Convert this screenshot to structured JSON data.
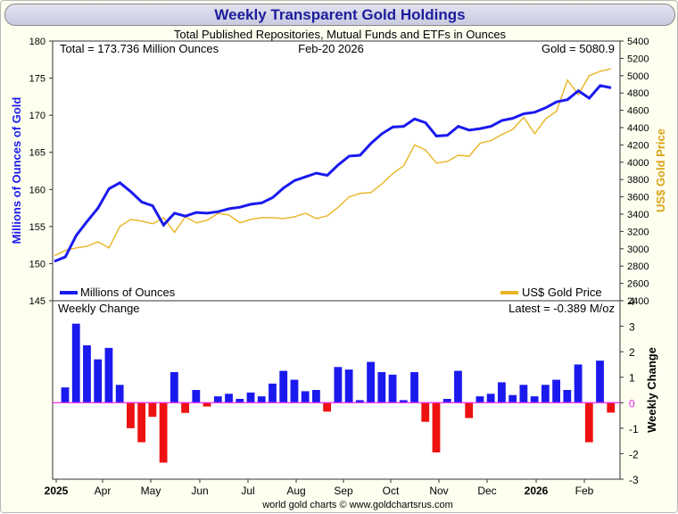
{
  "title": "Weekly Transparent Gold Holdings",
  "subtitle": "Total Published Repositories, Mutual Funds and ETFs in Ounces",
  "info": {
    "total": "Total = 173.736 Million Ounces",
    "date": "Feb-20  2026",
    "gold": "Gold = 5080.9"
  },
  "footer": "world gold charts © www.goldchartsrus.com",
  "colors": {
    "holdings": "#1a1aee",
    "gold": "#e8b422",
    "positive": "#1a1aee",
    "negative": "#ee1111",
    "zero": "#ee22ee",
    "title": "#1d1d9c"
  },
  "chart_data": [
    {
      "type": "line",
      "title": "Weekly Transparent Gold Holdings",
      "ylabel": "Millions of Ounces of Gold",
      "y2label": "US$ Gold Price",
      "ylim": [
        145,
        180
      ],
      "y2lim": [
        2400,
        5400
      ],
      "yticks": [
        145,
        150,
        155,
        160,
        165,
        170,
        175,
        180
      ],
      "y2ticks": [
        2400,
        2600,
        2800,
        3000,
        3200,
        3400,
        3600,
        3800,
        4000,
        4200,
        4400,
        4600,
        4800,
        5000,
        5200,
        5400
      ],
      "x_weeks_total": 60,
      "legend": [
        {
          "name": "Millions of Ounces",
          "position": "bottom-left"
        },
        {
          "name": "US$ Gold Price",
          "position": "bottom-right"
        }
      ],
      "series": [
        {
          "name": "Millions of Ounces",
          "axis": "left",
          "values": [
            150.3,
            150.9,
            153.8,
            155.7,
            157.5,
            160.1,
            160.9,
            159.7,
            158.3,
            157.8,
            155.2,
            156.8,
            156.4,
            156.9,
            156.8,
            157.0,
            157.4,
            157.6,
            158.0,
            158.2,
            158.9,
            160.2,
            161.2,
            161.7,
            162.2,
            161.9,
            163.3,
            164.5,
            164.6,
            166.2,
            167.5,
            168.4,
            168.5,
            169.5,
            169.0,
            167.2,
            167.3,
            168.5,
            168.0,
            168.2,
            168.5,
            169.3,
            169.6,
            170.2,
            170.4,
            171.0,
            171.8,
            172.1,
            173.3,
            172.3,
            174.0,
            173.7
          ]
        },
        {
          "name": "US$ Gold Price",
          "axis": "right",
          "values": [
            2920,
            2980,
            3010,
            3030,
            3080,
            3010,
            3260,
            3340,
            3320,
            3290,
            3360,
            3190,
            3370,
            3300,
            3330,
            3410,
            3390,
            3300,
            3340,
            3360,
            3360,
            3350,
            3370,
            3410,
            3350,
            3380,
            3480,
            3600,
            3640,
            3650,
            3750,
            3870,
            3960,
            4200,
            4140,
            3990,
            4010,
            4080,
            4070,
            4220,
            4250,
            4320,
            4380,
            4520,
            4330,
            4500,
            4590,
            4950,
            4780,
            5000,
            5050,
            5080
          ]
        }
      ]
    },
    {
      "type": "bar",
      "title": "Weekly Change",
      "annotation": "Latest = -0.389 M/oz",
      "ylabel": "Weekly Change",
      "ylim": [
        -3,
        4
      ],
      "yticks": [
        -3,
        -2,
        -1,
        0,
        1,
        2,
        3,
        4
      ],
      "x_weeks_total": 60,
      "x_tick_labels": [
        "2025",
        "Apr",
        "May",
        "Jun",
        "Jul",
        "Aug",
        "Sep",
        "Oct",
        "Nov",
        "Dec",
        "2026",
        "Feb"
      ],
      "x_tick_weeks": [
        0,
        12,
        23,
        35,
        46,
        57,
        70,
        81,
        92,
        103,
        114,
        125
      ],
      "values": [
        0.6,
        3.1,
        2.25,
        1.7,
        2.15,
        0.7,
        -1.0,
        -1.55,
        -0.55,
        -2.35,
        1.2,
        -0.4,
        0.5,
        -0.15,
        0.25,
        0.35,
        0.15,
        0.4,
        0.25,
        0.75,
        1.25,
        0.9,
        0.45,
        0.5,
        -0.35,
        1.4,
        1.3,
        0.1,
        1.6,
        1.2,
        1.1,
        0.1,
        1.2,
        -0.75,
        -1.95,
        0.15,
        1.25,
        -0.6,
        0.25,
        0.35,
        0.8,
        0.3,
        0.7,
        0.25,
        0.7,
        0.9,
        0.5,
        1.5,
        -1.55,
        1.65,
        -0.389
      ]
    }
  ]
}
